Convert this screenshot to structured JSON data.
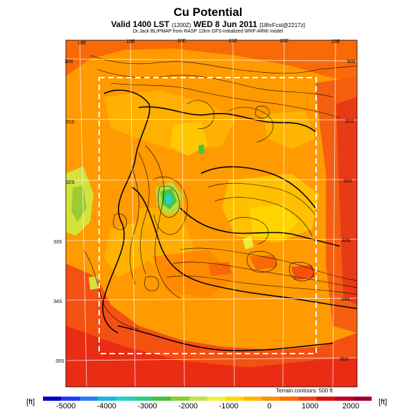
{
  "title": "Cu Potential",
  "subtitle_main": "Valid 1400 LST",
  "subtitle_code": "(1200Z)",
  "subtitle_date": "WED 8 Jun 2011",
  "subtitle_forecast": "[18hrFcst@2217z]",
  "credit": "Dr.Jack BLIPMAP from RASP 12km GFS-initialized WRF-ARW model",
  "terrain_note": "Terrain contours: 500 ft",
  "unit_left": "[ft]",
  "unit_right": "[ft]",
  "lon_labels": [
    "18E",
    "19E",
    "20E",
    "21E",
    "22E",
    "23E"
  ],
  "lat_labels": [
    "30S",
    "31S",
    "32S",
    "33S",
    "34S",
    "35S"
  ],
  "colorbar": {
    "ticks": [
      "-5000",
      "-4000",
      "-3000",
      "-2000",
      "-1000",
      "0",
      "1000",
      "2000"
    ],
    "colors": [
      "#0000c8",
      "#1e3cff",
      "#2c7cff",
      "#18b4e6",
      "#20d2c8",
      "#2acc88",
      "#40c040",
      "#84d030",
      "#c8e040",
      "#f0f040",
      "#ffd800",
      "#ffb400",
      "#ff9000",
      "#ff6c00",
      "#f84010",
      "#e01010",
      "#c00020",
      "#a00028"
    ]
  }
}
